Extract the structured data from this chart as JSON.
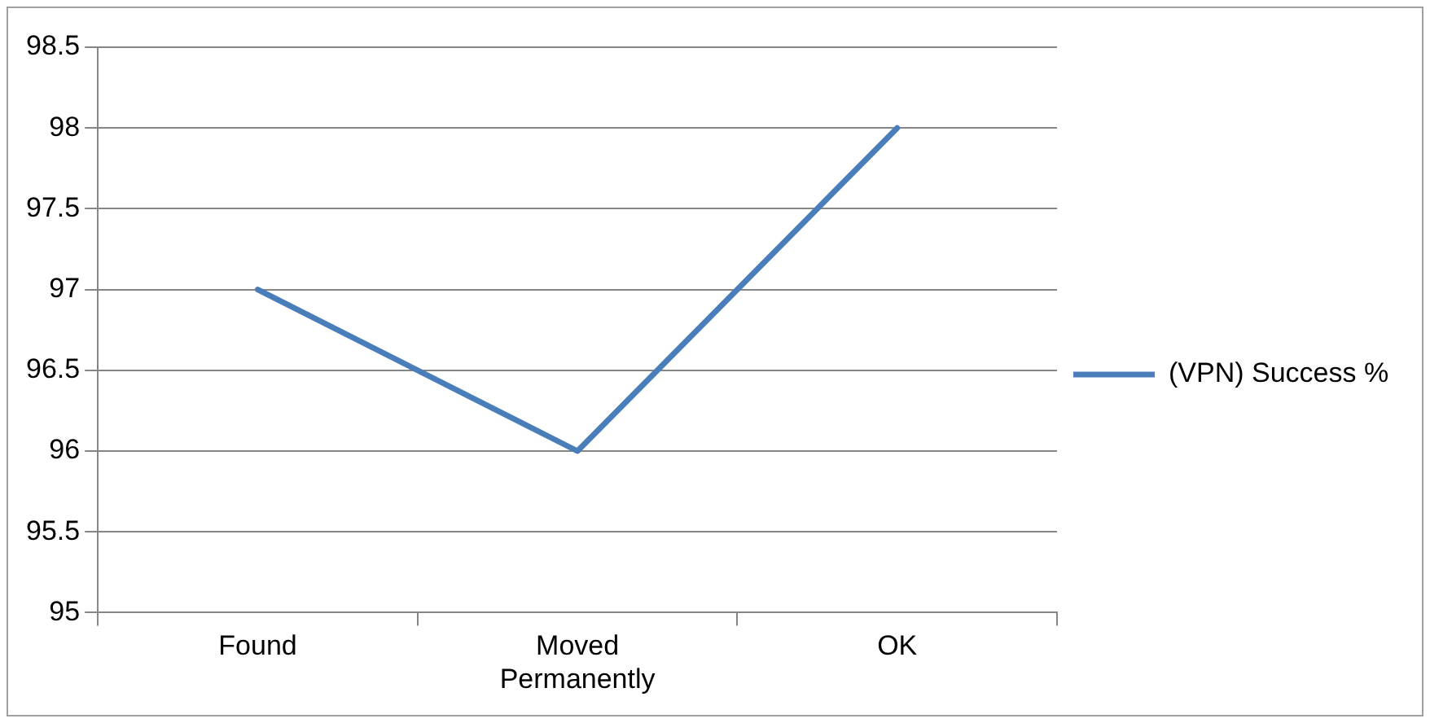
{
  "chart_data": {
    "type": "line",
    "categories": [
      "Found",
      "Moved Permanently",
      "OK"
    ],
    "series": [
      {
        "name": "(VPN) Success %",
        "color": "#4a7ebb",
        "values": [
          97,
          96,
          98
        ]
      }
    ],
    "ylim": [
      95,
      98.5
    ],
    "yticks": [
      95,
      95.5,
      96,
      96.5,
      97,
      97.5,
      98,
      98.5
    ],
    "grid": "y",
    "legend": "right",
    "marker": "none",
    "line_style": "solid"
  }
}
